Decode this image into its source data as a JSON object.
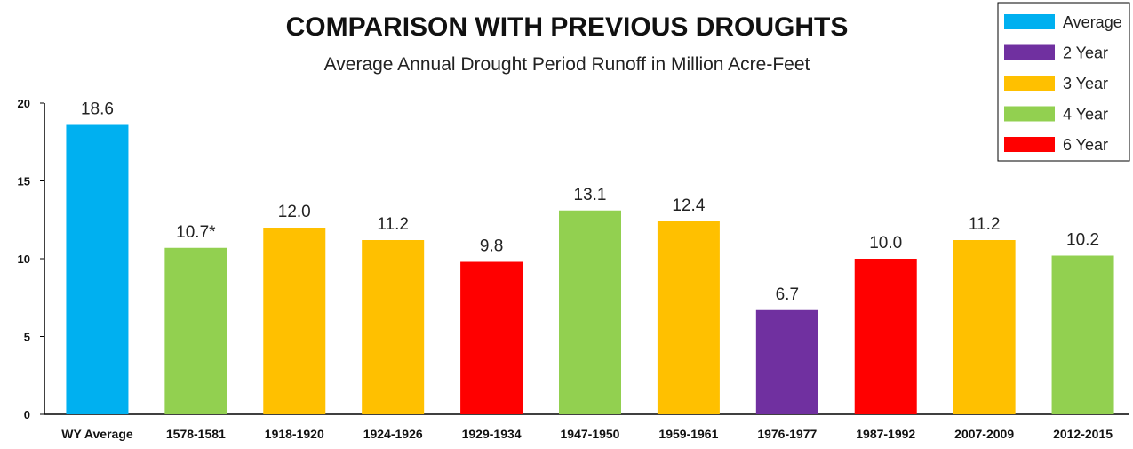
{
  "chart_data": {
    "type": "bar",
    "title": "COMPARISON WITH PREVIOUS DROUGHTS",
    "subtitle": "Average Annual Drought Period Runoff in Million Acre-Feet",
    "categories": [
      "WY Average",
      "1578-1581",
      "1918-1920",
      "1924-1926",
      "1929-1934",
      "1947-1950",
      "1959-1961",
      "1976-1977",
      "1987-1992",
      "2007-2009",
      "2012-2015"
    ],
    "values": [
      18.6,
      10.7,
      12.0,
      11.2,
      9.8,
      13.1,
      12.4,
      6.7,
      10.0,
      11.2,
      10.2
    ],
    "data_labels": [
      "18.6",
      "10.7*",
      "12.0",
      "11.2",
      "9.8",
      "13.1",
      "12.4",
      "6.7",
      "10.0",
      "11.2",
      "10.2"
    ],
    "groups": [
      "Average",
      "4 Year",
      "3 Year",
      "3 Year",
      "6 Year",
      "4 Year",
      "3 Year",
      "2 Year",
      "6 Year",
      "3 Year",
      "4 Year"
    ],
    "yticks": [
      "0",
      "5",
      "10",
      "15",
      "20"
    ],
    "ylim": [
      0,
      20
    ],
    "grid": false,
    "legend": {
      "placement": "top-right",
      "entries": [
        {
          "label": "Average",
          "color": "#00B0F0"
        },
        {
          "label": "2 Year",
          "color": "#7030A0"
        },
        {
          "label": "3 Year",
          "color": "#FFC000"
        },
        {
          "label": "4 Year",
          "color": "#92D050"
        },
        {
          "label": "6 Year",
          "color": "#FF0000"
        }
      ]
    }
  }
}
